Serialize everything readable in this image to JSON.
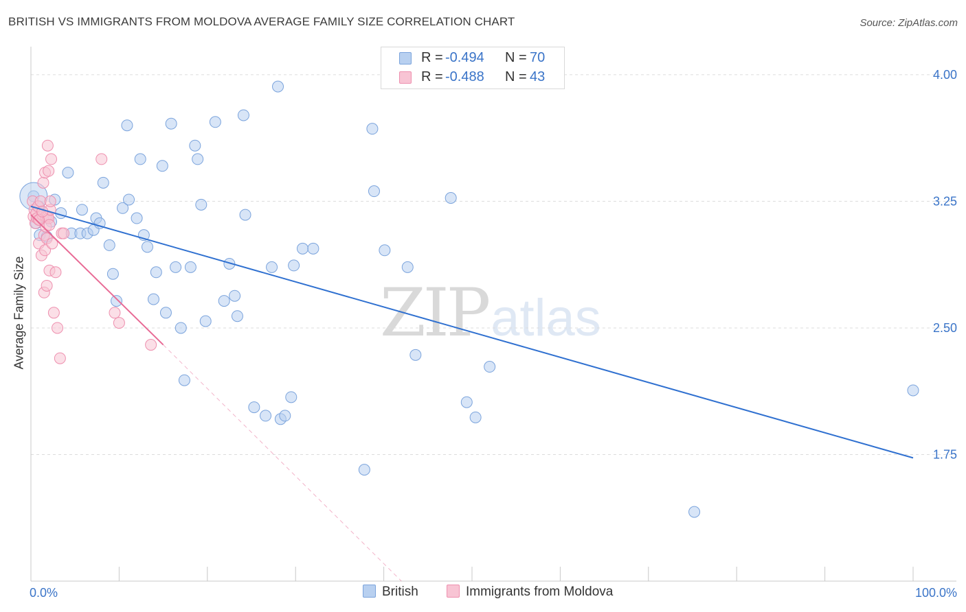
{
  "title": "BRITISH VS IMMIGRANTS FROM MOLDOVA AVERAGE FAMILY SIZE CORRELATION CHART",
  "source": "Source: ZipAtlas.com",
  "watermark": {
    "zip": "ZIP",
    "atlas": "atlas"
  },
  "legend_top": [
    {
      "r_label": "R = ",
      "r_value": "-0.494",
      "n_label": "N = ",
      "n_value": "70"
    },
    {
      "r_label": "R = ",
      "r_value": "-0.488",
      "n_label": "N = ",
      "n_value": "43"
    }
  ],
  "legend_bottom": [
    "British",
    "Immigrants from Moldova"
  ],
  "colors": {
    "british_fill": "#b8d0f0",
    "british_stroke": "#7aa3dc",
    "british_line": "#2f70d0",
    "moldova_fill": "#f8c4d4",
    "moldova_stroke": "#ee8fae",
    "moldova_line": "#e86a95",
    "tick_label": "#3a74c8",
    "grid": "#dcdcdc"
  },
  "chart_data": {
    "type": "scatter",
    "title": "BRITISH VS IMMIGRANTS FROM MOLDOVA AVERAGE FAMILY SIZE CORRELATION CHART",
    "xlabel": "",
    "ylabel": "Average Family Size",
    "xlim": [
      0,
      100
    ],
    "ylim": [
      1.0,
      4.15
    ],
    "x_tick_labels": [
      "0.0%",
      "100.0%"
    ],
    "y_ticks": [
      1.75,
      2.5,
      3.25,
      4.0
    ],
    "y_tick_labels": [
      "1.75",
      "2.50",
      "3.25",
      "4.00"
    ],
    "grid": true,
    "legend_position": "top-center",
    "series": [
      {
        "name": "British",
        "points": [
          [
            0.3,
            3.28
          ],
          [
            0.6,
            3.12
          ],
          [
            1.0,
            3.05
          ],
          [
            1.8,
            3.04
          ],
          [
            2.3,
            3.13
          ],
          [
            2.7,
            3.26
          ],
          [
            3.4,
            3.18
          ],
          [
            4.2,
            3.42
          ],
          [
            4.6,
            3.06
          ],
          [
            5.6,
            3.06
          ],
          [
            5.8,
            3.2
          ],
          [
            6.4,
            3.06
          ],
          [
            7.1,
            3.08
          ],
          [
            7.4,
            3.15
          ],
          [
            7.8,
            3.12
          ],
          [
            8.2,
            3.36
          ],
          [
            8.9,
            2.99
          ],
          [
            9.3,
            2.82
          ],
          [
            9.7,
            2.66
          ],
          [
            10.4,
            3.21
          ],
          [
            10.9,
            3.7
          ],
          [
            11.1,
            3.26
          ],
          [
            12.0,
            3.15
          ],
          [
            12.4,
            3.5
          ],
          [
            12.8,
            3.05
          ],
          [
            13.2,
            2.98
          ],
          [
            13.9,
            2.67
          ],
          [
            14.2,
            2.83
          ],
          [
            14.9,
            3.46
          ],
          [
            15.3,
            2.59
          ],
          [
            15.9,
            3.71
          ],
          [
            16.4,
            2.86
          ],
          [
            17.0,
            2.5
          ],
          [
            17.4,
            2.19
          ],
          [
            18.1,
            2.86
          ],
          [
            18.6,
            3.58
          ],
          [
            18.9,
            3.5
          ],
          [
            19.3,
            3.23
          ],
          [
            19.8,
            2.54
          ],
          [
            20.9,
            3.72
          ],
          [
            21.9,
            2.66
          ],
          [
            22.5,
            2.88
          ],
          [
            23.1,
            2.69
          ],
          [
            23.4,
            2.57
          ],
          [
            24.1,
            3.76
          ],
          [
            24.3,
            3.17
          ],
          [
            25.3,
            2.03
          ],
          [
            26.6,
            1.98
          ],
          [
            27.3,
            2.86
          ],
          [
            28.0,
            3.93
          ],
          [
            28.3,
            1.96
          ],
          [
            28.8,
            1.98
          ],
          [
            29.5,
            2.09
          ],
          [
            29.8,
            2.87
          ],
          [
            30.8,
            2.97
          ],
          [
            32.0,
            2.97
          ],
          [
            37.8,
            1.66
          ],
          [
            38.7,
            3.68
          ],
          [
            38.9,
            3.31
          ],
          [
            40.1,
            2.96
          ],
          [
            42.7,
            2.86
          ],
          [
            43.6,
            2.34
          ],
          [
            47.6,
            3.27
          ],
          [
            49.4,
            2.06
          ],
          [
            50.4,
            1.97
          ],
          [
            52.0,
            2.27
          ],
          [
            75.2,
            1.41
          ],
          [
            100.0,
            2.13
          ],
          [
            0.9,
            3.22
          ],
          [
            1.4,
            3.16
          ]
        ],
        "trend": {
          "x": [
            0,
            100
          ],
          "y": [
            3.22,
            1.73
          ]
        }
      },
      {
        "name": "Immigrants from Moldova",
        "points": [
          [
            0.2,
            3.25
          ],
          [
            0.3,
            3.16
          ],
          [
            0.4,
            3.2
          ],
          [
            0.5,
            3.12
          ],
          [
            0.6,
            3.18
          ],
          [
            0.7,
            3.15
          ],
          [
            0.8,
            3.22
          ],
          [
            0.9,
            3.0
          ],
          [
            1.0,
            3.14
          ],
          [
            1.1,
            3.25
          ],
          [
            1.2,
            2.93
          ],
          [
            1.3,
            3.17
          ],
          [
            1.4,
            3.36
          ],
          [
            1.5,
            3.05
          ],
          [
            1.5,
            2.71
          ],
          [
            1.6,
            2.96
          ],
          [
            1.6,
            3.42
          ],
          [
            1.7,
            3.1
          ],
          [
            1.7,
            3.16
          ],
          [
            1.8,
            2.75
          ],
          [
            1.8,
            3.03
          ],
          [
            1.9,
            3.58
          ],
          [
            1.9,
            3.16
          ],
          [
            2.0,
            3.15
          ],
          [
            2.0,
            3.43
          ],
          [
            2.1,
            3.11
          ],
          [
            2.1,
            2.84
          ],
          [
            2.2,
            3.2
          ],
          [
            2.2,
            3.25
          ],
          [
            2.3,
            3.5
          ],
          [
            2.4,
            3.0
          ],
          [
            2.6,
            2.59
          ],
          [
            2.8,
            2.83
          ],
          [
            3.0,
            2.5
          ],
          [
            3.3,
            2.32
          ],
          [
            3.5,
            3.06
          ],
          [
            3.7,
            3.06
          ],
          [
            8.0,
            3.5
          ],
          [
            9.5,
            2.59
          ],
          [
            10.0,
            2.53
          ],
          [
            13.6,
            2.4
          ],
          [
            0.9,
            3.14
          ],
          [
            1.3,
            3.19
          ]
        ],
        "trend": {
          "x": [
            0,
            15
          ],
          "y": [
            3.17,
            2.4
          ]
        },
        "trend_extension": {
          "x": [
            15,
            42
          ],
          "y": [
            2.4,
            1.0
          ]
        }
      }
    ]
  }
}
